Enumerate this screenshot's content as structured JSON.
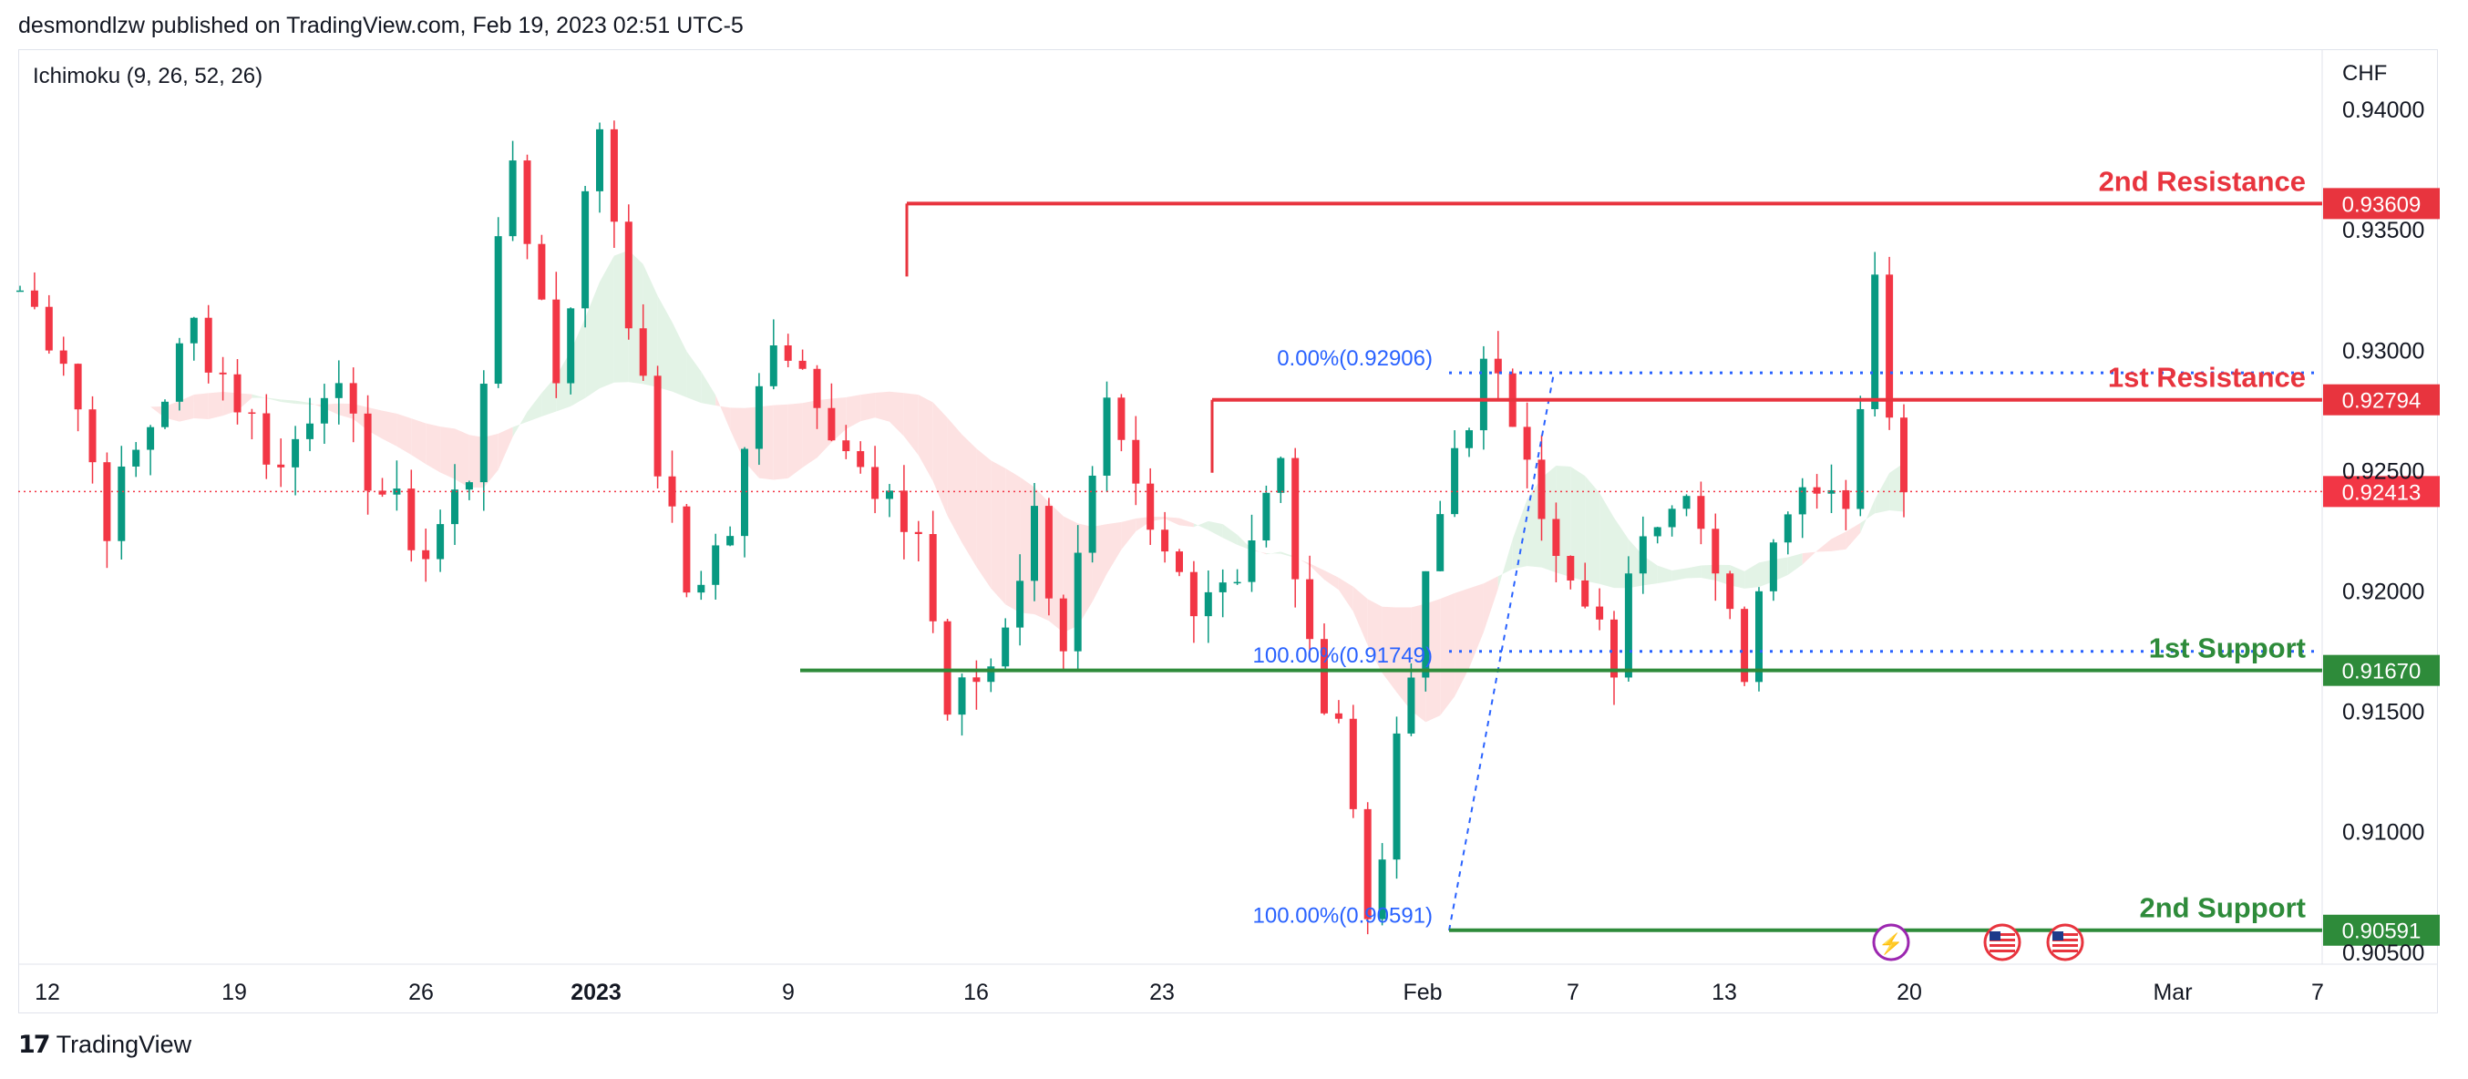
{
  "caption": "desmondlzw published on TradingView.com, Feb 19, 2023 02:51 UTC-5",
  "indicator": "Ichimoku (9, 26, 52, 26)",
  "brand": "TradingView",
  "colors": {
    "up": "#089981",
    "down": "#f23645",
    "resistance": "#e8343e",
    "support": "#2e8b3a",
    "fib": "#2962ff",
    "cloud_bear": "#fde2e2",
    "cloud_bull": "#e3f3e6"
  },
  "chart_data": {
    "type": "candlestick",
    "currency": "CHF",
    "y_range": [
      0.9045,
      0.9425
    ],
    "y_ticks": [
      "0.94000",
      "0.93500",
      "0.93000",
      "0.92500",
      "0.92000",
      "0.91500",
      "0.91000",
      "0.90500"
    ],
    "x_ticks": [
      "12",
      "19",
      "26",
      "2023",
      "9",
      "16",
      "23",
      "Feb",
      "7",
      "13",
      "20",
      "Mar",
      "7"
    ],
    "current_price": "0.92413",
    "levels": [
      {
        "label": "2nd Resistance",
        "value": "0.93609",
        "kind": "resistance"
      },
      {
        "label": "1st Resistance",
        "value": "0.92794",
        "kind": "resistance"
      },
      {
        "label": "1st Support",
        "value": "0.91670",
        "kind": "support"
      },
      {
        "label": "2nd Support",
        "value": "0.90591",
        "kind": "support"
      }
    ],
    "fibonacci": [
      {
        "label": "0.00%(0.92906)",
        "value": 0.92906
      },
      {
        "label": "100.00%(0.91749)",
        "value": 0.91749
      },
      {
        "label": "100.00%(0.90591)",
        "value": 0.90591
      }
    ],
    "anchors": [
      {
        "close": 0.9325,
        "day": 0
      },
      {
        "close": 0.93,
        "day": 3
      },
      {
        "close": 0.923,
        "day": 6
      },
      {
        "close": 0.927,
        "day": 9
      },
      {
        "close": 0.931,
        "day": 12
      },
      {
        "close": 0.928,
        "day": 15
      },
      {
        "close": 0.925,
        "day": 18
      },
      {
        "close": 0.929,
        "day": 21
      },
      {
        "close": 0.925,
        "day": 24
      },
      {
        "close": 0.9215,
        "day": 28
      },
      {
        "close": 0.925,
        "day": 31
      },
      {
        "close": 0.938,
        "day": 34
      },
      {
        "close": 0.929,
        "day": 37
      },
      {
        "close": 0.9395,
        "day": 40
      },
      {
        "close": 0.928,
        "day": 43
      },
      {
        "close": 0.92,
        "day": 46
      },
      {
        "close": 0.9225,
        "day": 49
      },
      {
        "close": 0.931,
        "day": 52
      },
      {
        "close": 0.9285,
        "day": 55
      },
      {
        "close": 0.9235,
        "day": 59
      },
      {
        "close": 0.9225,
        "day": 62
      },
      {
        "close": 0.915,
        "day": 64
      },
      {
        "close": 0.917,
        "day": 67
      },
      {
        "close": 0.923,
        "day": 70
      },
      {
        "close": 0.918,
        "day": 72
      },
      {
        "close": 0.927,
        "day": 75
      },
      {
        "close": 0.922,
        "day": 78
      },
      {
        "close": 0.92,
        "day": 81
      },
      {
        "close": 0.921,
        "day": 84
      },
      {
        "close": 0.925,
        "day": 87
      },
      {
        "close": 0.917,
        "day": 89
      },
      {
        "close": 0.915,
        "day": 91
      },
      {
        "close": 0.9065,
        "day": 93
      },
      {
        "close": 0.913,
        "day": 95
      },
      {
        "close": 0.92,
        "day": 97
      },
      {
        "close": 0.926,
        "day": 99
      },
      {
        "close": 0.929,
        "day": 101
      },
      {
        "close": 0.9265,
        "day": 104
      },
      {
        "close": 0.921,
        "day": 106
      },
      {
        "close": 0.919,
        "day": 108
      },
      {
        "close": 0.917,
        "day": 110
      },
      {
        "close": 0.923,
        "day": 112
      },
      {
        "close": 0.925,
        "day": 115
      },
      {
        "close": 0.92,
        "day": 117
      },
      {
        "close": 0.917,
        "day": 119
      },
      {
        "close": 0.923,
        "day": 121
      },
      {
        "close": 0.925,
        "day": 124
      },
      {
        "close": 0.924,
        "day": 126
      },
      {
        "close": 0.928,
        "day": 127
      },
      {
        "close": 0.9325,
        "day": 128
      },
      {
        "close": 0.928,
        "day": 129
      },
      {
        "close": 0.9241,
        "day": 130
      }
    ]
  }
}
